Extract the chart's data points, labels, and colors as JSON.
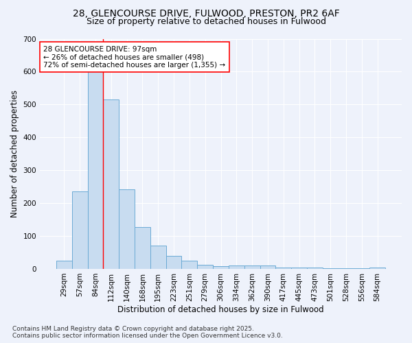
{
  "title1": "28, GLENCOURSE DRIVE, FULWOOD, PRESTON, PR2 6AF",
  "title2": "Size of property relative to detached houses in Fulwood",
  "xlabel": "Distribution of detached houses by size in Fulwood",
  "ylabel": "Number of detached properties",
  "categories": [
    "29sqm",
    "57sqm",
    "84sqm",
    "112sqm",
    "140sqm",
    "168sqm",
    "195sqm",
    "223sqm",
    "251sqm",
    "279sqm",
    "306sqm",
    "334sqm",
    "362sqm",
    "390sqm",
    "417sqm",
    "445sqm",
    "473sqm",
    "501sqm",
    "528sqm",
    "556sqm",
    "584sqm"
  ],
  "values": [
    25,
    235,
    660,
    515,
    243,
    127,
    70,
    40,
    25,
    13,
    8,
    10,
    10,
    10,
    5,
    5,
    5,
    3,
    2,
    2,
    5
  ],
  "bar_color": "#c8dcf0",
  "bar_edge_color": "#6aaad4",
  "red_line_x": 2.5,
  "annotation_text": "28 GLENCOURSE DRIVE: 97sqm\n← 26% of detached houses are smaller (498)\n72% of semi-detached houses are larger (1,355) →",
  "annotation_box_color": "white",
  "annotation_box_edge": "red",
  "ylim": [
    0,
    700
  ],
  "yticks": [
    0,
    100,
    200,
    300,
    400,
    500,
    600,
    700
  ],
  "footer1": "Contains HM Land Registry data © Crown copyright and database right 2025.",
  "footer2": "Contains public sector information licensed under the Open Government Licence v3.0.",
  "bg_color": "#eef2fb",
  "plot_bg_color": "#eef2fb",
  "grid_color": "white",
  "title_fontsize": 10,
  "subtitle_fontsize": 9,
  "axis_label_fontsize": 8.5,
  "tick_fontsize": 7.5,
  "footer_fontsize": 6.5,
  "annotation_fontsize": 7.5
}
